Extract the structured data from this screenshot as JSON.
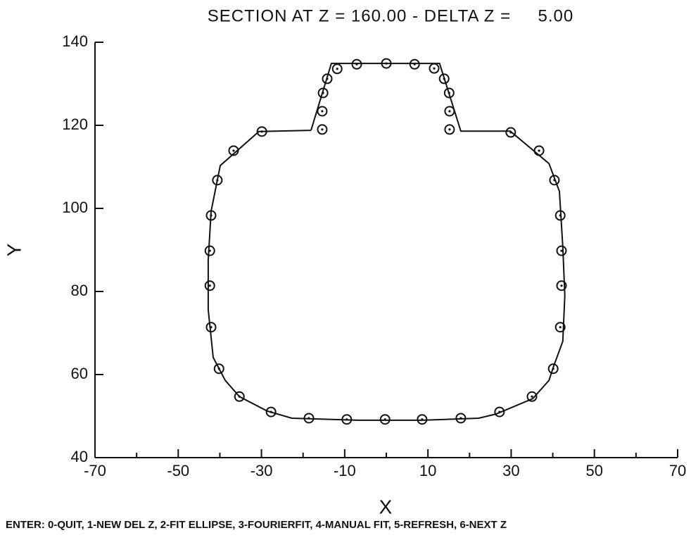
{
  "chart_data": {
    "type": "scatter",
    "title": "SECTION AT Z = 160.00 - DELTA Z =     5.00",
    "x_label": "X",
    "y_label": "Y",
    "prompt": "ENTER: 0-QUIT, 1-NEW DEL Z, 2-FIT ELLIPSE, 3-FOURIERFIT, 4-MANUAL FIT, 5-REFRESH, 6-NEXT Z",
    "xlim": [
      -70,
      70
    ],
    "ylim": [
      40,
      140
    ],
    "xticks": [
      -70,
      -50,
      -30,
      -10,
      10,
      30,
      50,
      70
    ],
    "xminorticks": [
      -60,
      -40,
      -20,
      0,
      20,
      40,
      60
    ],
    "yticks": [
      40,
      60,
      80,
      100,
      120,
      140
    ],
    "color": "#111111",
    "points": {
      "x": [
        -15.4,
        -15.4,
        -15.2,
        -14.2,
        -11.8,
        -7.1,
        0,
        6.8,
        11.5,
        13.9,
        15.1,
        15.2,
        15.2,
        29.9,
        36.7,
        40.4,
        41.8,
        42.1,
        42.1,
        41.8,
        40.1,
        35.0,
        27.2,
        17.9,
        8.6,
        -0.3,
        -9.5,
        -18.6,
        -27.7,
        -35.3,
        -40.2,
        -42.1,
        -42.4,
        -42.4,
        -42.1,
        -40.6,
        -36.7,
        -29.9
      ],
      "y": [
        119.0,
        123.4,
        127.8,
        131.2,
        133.6,
        134.7,
        134.9,
        134.7,
        133.7,
        131.2,
        127.8,
        123.4,
        119.0,
        118.3,
        113.9,
        106.8,
        98.3,
        89.8,
        81.4,
        71.4,
        61.4,
        54.7,
        51.0,
        49.5,
        49.2,
        49.2,
        49.2,
        49.5,
        51.0,
        54.7,
        61.4,
        71.4,
        81.4,
        89.8,
        98.3,
        106.8,
        113.9,
        118.5
      ]
    },
    "fit": {
      "x": [
        -18.1,
        -13.2,
        12.8,
        17.9,
        29.8,
        39.1,
        41.6,
        42.4,
        42.9,
        42.4,
        40.2,
        39.1,
        35.2,
        26.4,
        22.2,
        8.6,
        -6.6,
        -22.7,
        -28.6,
        -35.3,
        -38.7,
        -41.6,
        -42.8,
        -42.8,
        -42.1,
        -39.9,
        -30.6,
        -18.1
      ],
      "y": [
        118.8,
        134.9,
        134.9,
        118.6,
        118.6,
        110.8,
        104.1,
        90.8,
        79.0,
        68.0,
        62.0,
        58.6,
        54.2,
        50.5,
        49.5,
        49.0,
        49.0,
        49.5,
        51.2,
        54.7,
        58.6,
        64.1,
        75.6,
        87.5,
        99.3,
        110.3,
        118.5,
        118.8
      ]
    }
  }
}
